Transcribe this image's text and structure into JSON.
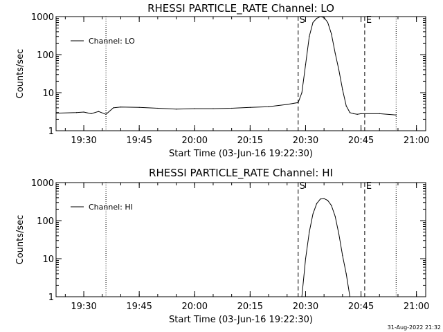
{
  "footer": {
    "timestamp": "31-Aug-2022 21:32"
  },
  "chart_data": [
    {
      "type": "line",
      "title": "RHESSI PARTICLE_RATE Channel: LO",
      "xlabel": "Start Time (03-Jun-16 19:22:30)",
      "ylabel": "Counts/sec",
      "xlim": [
        "19:22:30",
        "21:02:30"
      ],
      "ylim": [
        1,
        1000
      ],
      "yscale": "log",
      "x_ticks": [
        "19:30",
        "19:45",
        "20:00",
        "20:15",
        "20:30",
        "20:45",
        "21:00"
      ],
      "y_ticks": [
        "1",
        "10",
        "100",
        "1000"
      ],
      "legend": {
        "label": "Channel: LO",
        "position": "top-left"
      },
      "markers": [
        {
          "label": "S",
          "time": "20:28:00",
          "style": "dashed"
        },
        {
          "label": "E",
          "time": "20:46:00",
          "style": "dashed"
        }
      ],
      "night_lines": [
        "19:36:00",
        "20:54:30"
      ],
      "series": [
        {
          "name": "Channel: LO",
          "x": [
            "19:22:30",
            "19:28:00",
            "19:30:00",
            "19:32:00",
            "19:34:00",
            "19:36:00",
            "19:38:00",
            "19:40:00",
            "19:45:00",
            "19:50:00",
            "19:55:00",
            "20:00:00",
            "20:05:00",
            "20:10:00",
            "20:15:00",
            "20:20:00",
            "20:25:00",
            "20:28:00",
            "20:29:00",
            "20:30:00",
            "20:31:00",
            "20:32:00",
            "20:33:00",
            "20:34:00",
            "20:35:00",
            "20:36:00",
            "20:37:00",
            "20:38:00",
            "20:39:00",
            "20:40:00",
            "20:41:00",
            "20:42:00",
            "20:43:00",
            "20:44:00",
            "20:45:00",
            "20:50:00",
            "20:54:30"
          ],
          "y": [
            2.9,
            3.0,
            3.1,
            2.8,
            3.2,
            2.7,
            4.0,
            4.2,
            4.1,
            3.9,
            3.7,
            3.8,
            3.8,
            3.9,
            4.1,
            4.3,
            4.9,
            5.5,
            10,
            55,
            300,
            700,
            900,
            1000,
            950,
            700,
            350,
            110,
            40,
            12,
            4.5,
            3.0,
            2.8,
            2.7,
            2.8,
            2.8,
            2.6
          ]
        }
      ]
    },
    {
      "type": "line",
      "title": "RHESSI PARTICLE_RATE Channel: HI",
      "xlabel": "Start Time (03-Jun-16 19:22:30)",
      "ylabel": "Counts/sec",
      "xlim": [
        "19:22:30",
        "21:02:30"
      ],
      "ylim": [
        1,
        1000
      ],
      "yscale": "log",
      "x_ticks": [
        "19:30",
        "19:45",
        "20:00",
        "20:15",
        "20:30",
        "20:45",
        "21:00"
      ],
      "y_ticks": [
        "1",
        "10",
        "100",
        "1000"
      ],
      "legend": {
        "label": "Channel: HI",
        "position": "top-left"
      },
      "markers": [
        {
          "label": "S",
          "time": "20:28:00",
          "style": "dashed"
        },
        {
          "label": "E",
          "time": "20:46:00",
          "style": "dashed"
        }
      ],
      "night_lines": [
        "19:36:00",
        "20:54:30"
      ],
      "series": [
        {
          "name": "Channel: HI",
          "x": [
            "20:29:00",
            "20:30:00",
            "20:31:00",
            "20:32:00",
            "20:33:00",
            "20:34:00",
            "20:35:00",
            "20:36:00",
            "20:37:00",
            "20:38:00",
            "20:39:00",
            "20:40:00",
            "20:41:00",
            "20:42:00"
          ],
          "y": [
            1,
            10,
            50,
            150,
            280,
            370,
            380,
            340,
            250,
            130,
            45,
            12,
            4,
            1
          ]
        }
      ]
    }
  ]
}
